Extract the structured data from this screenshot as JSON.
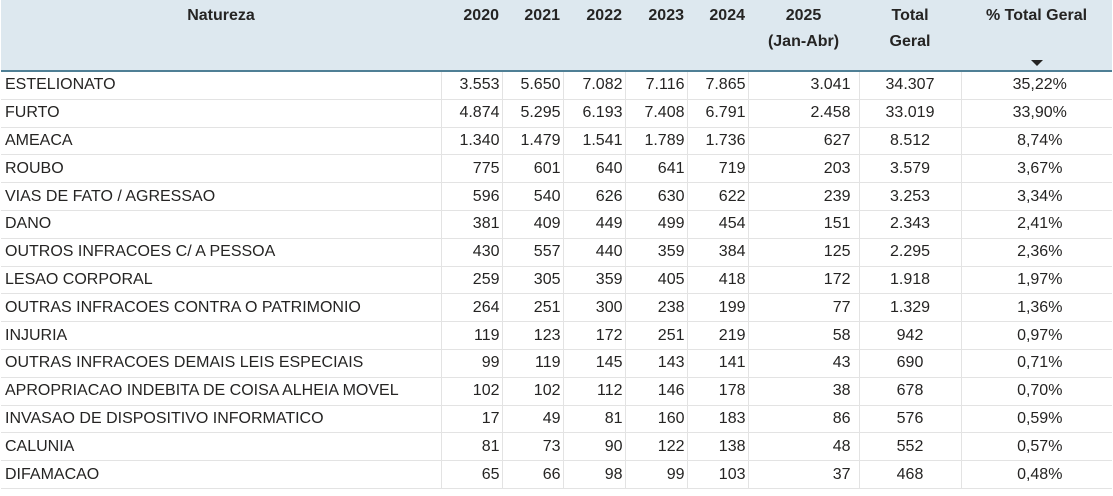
{
  "table": {
    "headers": {
      "natureza": "Natureza",
      "y2020": "2020",
      "y2021": "2021",
      "y2022": "2022",
      "y2023": "2023",
      "y2024": "2024",
      "y2025": "2025\n(Jan-Abr)",
      "total": "Total\nGeral",
      "pct": "% Total Geral"
    },
    "sort_icon": "sort-descending-icon",
    "rows": [
      {
        "natureza": "ESTELIONATO",
        "y2020": "3.553",
        "y2021": "5.650",
        "y2022": "7.082",
        "y2023": "7.116",
        "y2024": "7.865",
        "y2025": "3.041",
        "total": "34.307",
        "pct": "35,22%"
      },
      {
        "natureza": "FURTO",
        "y2020": "4.874",
        "y2021": "5.295",
        "y2022": "6.193",
        "y2023": "7.408",
        "y2024": "6.791",
        "y2025": "2.458",
        "total": "33.019",
        "pct": "33,90%"
      },
      {
        "natureza": "AMEACA",
        "y2020": "1.340",
        "y2021": "1.479",
        "y2022": "1.541",
        "y2023": "1.789",
        "y2024": "1.736",
        "y2025": "627",
        "total": "8.512",
        "pct": "8,74%"
      },
      {
        "natureza": "ROUBO",
        "y2020": "775",
        "y2021": "601",
        "y2022": "640",
        "y2023": "641",
        "y2024": "719",
        "y2025": "203",
        "total": "3.579",
        "pct": "3,67%"
      },
      {
        "natureza": "VIAS DE FATO / AGRESSAO",
        "y2020": "596",
        "y2021": "540",
        "y2022": "626",
        "y2023": "630",
        "y2024": "622",
        "y2025": "239",
        "total": "3.253",
        "pct": "3,34%"
      },
      {
        "natureza": "DANO",
        "y2020": "381",
        "y2021": "409",
        "y2022": "449",
        "y2023": "499",
        "y2024": "454",
        "y2025": "151",
        "total": "2.343",
        "pct": "2,41%"
      },
      {
        "natureza": "OUTROS INFRACOES C/ A PESSOA",
        "y2020": "430",
        "y2021": "557",
        "y2022": "440",
        "y2023": "359",
        "y2024": "384",
        "y2025": "125",
        "total": "2.295",
        "pct": "2,36%"
      },
      {
        "natureza": "LESAO CORPORAL",
        "y2020": "259",
        "y2021": "305",
        "y2022": "359",
        "y2023": "405",
        "y2024": "418",
        "y2025": "172",
        "total": "1.918",
        "pct": "1,97%"
      },
      {
        "natureza": "OUTRAS INFRACOES CONTRA O PATRIMONIO",
        "y2020": "264",
        "y2021": "251",
        "y2022": "300",
        "y2023": "238",
        "y2024": "199",
        "y2025": "77",
        "total": "1.329",
        "pct": "1,36%"
      },
      {
        "natureza": "INJURIA",
        "y2020": "119",
        "y2021": "123",
        "y2022": "172",
        "y2023": "251",
        "y2024": "219",
        "y2025": "58",
        "total": "942",
        "pct": "0,97%"
      },
      {
        "natureza": "OUTRAS INFRACOES DEMAIS LEIS ESPECIAIS",
        "y2020": "99",
        "y2021": "119",
        "y2022": "145",
        "y2023": "143",
        "y2024": "141",
        "y2025": "43",
        "total": "690",
        "pct": "0,71%"
      },
      {
        "natureza": "APROPRIACAO INDEBITA DE COISA ALHEIA MOVEL",
        "y2020": "102",
        "y2021": "102",
        "y2022": "112",
        "y2023": "146",
        "y2024": "178",
        "y2025": "38",
        "total": "678",
        "pct": "0,70%"
      },
      {
        "natureza": "INVASAO DE DISPOSITIVO INFORMATICO",
        "y2020": "17",
        "y2021": "49",
        "y2022": "81",
        "y2023": "160",
        "y2024": "183",
        "y2025": "86",
        "total": "576",
        "pct": "0,59%"
      },
      {
        "natureza": "CALUNIA",
        "y2020": "81",
        "y2021": "73",
        "y2022": "90",
        "y2023": "122",
        "y2024": "138",
        "y2025": "48",
        "total": "552",
        "pct": "0,57%"
      },
      {
        "natureza": "DIFAMACAO",
        "y2020": "65",
        "y2021": "66",
        "y2022": "98",
        "y2023": "99",
        "y2024": "103",
        "y2025": "37",
        "total": "468",
        "pct": "0,48%"
      }
    ]
  },
  "colors": {
    "header_bg": "#dde8ef",
    "header_border": "#4f7f95",
    "grid_line": "#e3e3e3",
    "text": "#252423"
  }
}
